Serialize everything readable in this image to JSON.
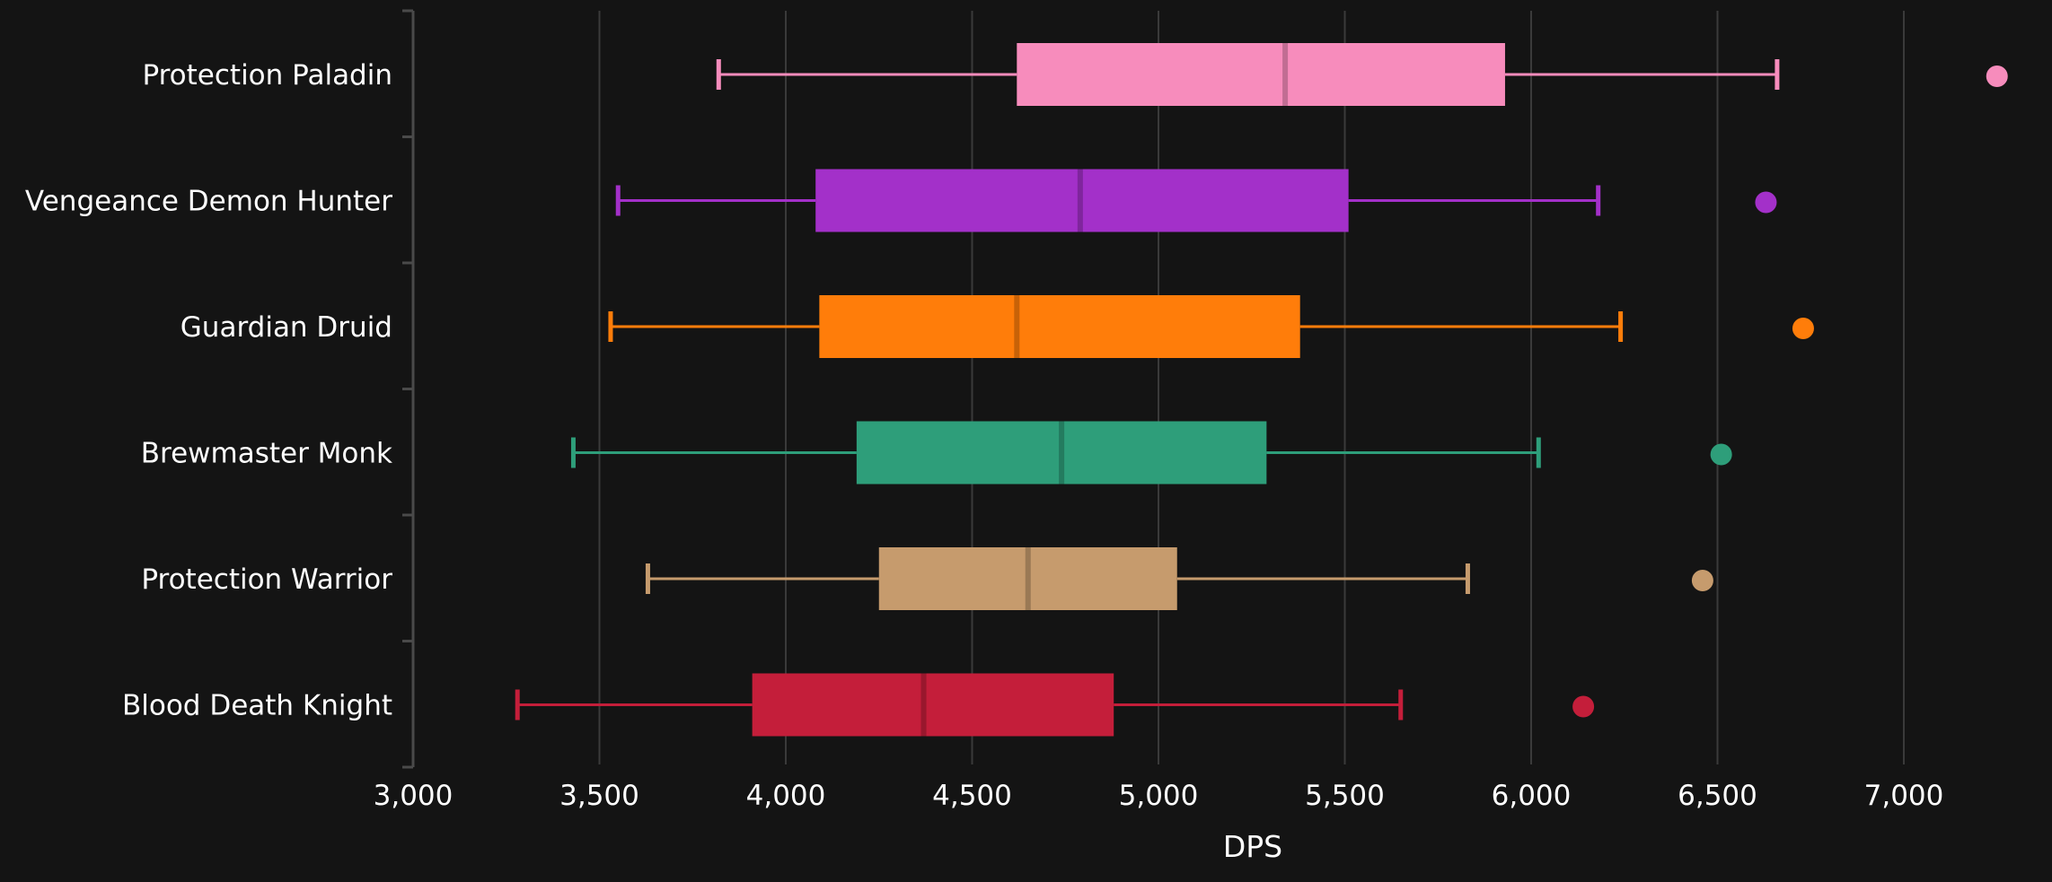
{
  "chart_data": {
    "type": "boxplot",
    "title": "",
    "xlabel": "DPS",
    "ylabel": "",
    "xlim": [
      3000,
      7200
    ],
    "xticks": [
      3000,
      3500,
      4000,
      4500,
      5000,
      5500,
      6000,
      6500,
      7000
    ],
    "xtick_labels": [
      "3,000",
      "3,500",
      "4,000",
      "4,500",
      "5,000",
      "5,500",
      "6,000",
      "6,500",
      "7,000"
    ],
    "grid": "vertical",
    "orientation": "horizontal",
    "series": [
      {
        "name": "Protection Paladin",
        "color": "#f78cbc",
        "min": 3820,
        "q1": 4620,
        "median": 5340,
        "q3": 5930,
        "max": 6660,
        "outliers": [
          7250
        ]
      },
      {
        "name": "Vengeance Demon Hunter",
        "color": "#a330c9",
        "min": 3550,
        "q1": 4080,
        "median": 4790,
        "q3": 5510,
        "max": 6180,
        "outliers": [
          6630
        ]
      },
      {
        "name": "Guardian Druid",
        "color": "#ff7d0a",
        "min": 3530,
        "q1": 4090,
        "median": 4620,
        "q3": 5380,
        "max": 6240,
        "outliers": [
          6730
        ]
      },
      {
        "name": "Brewmaster Monk",
        "color": "#2e9e7a",
        "min": 3430,
        "q1": 4190,
        "median": 4740,
        "q3": 5290,
        "max": 6020,
        "outliers": [
          6510
        ]
      },
      {
        "name": "Protection Warrior",
        "color": "#c69b6d",
        "min": 3630,
        "q1": 4250,
        "median": 4650,
        "q3": 5050,
        "max": 5830,
        "outliers": [
          6460
        ]
      },
      {
        "name": "Blood Death Knight",
        "color": "#c41e3a",
        "min": 3280,
        "q1": 3910,
        "median": 4370,
        "q3": 4880,
        "max": 5650,
        "outliers": [
          6140
        ]
      }
    ]
  }
}
